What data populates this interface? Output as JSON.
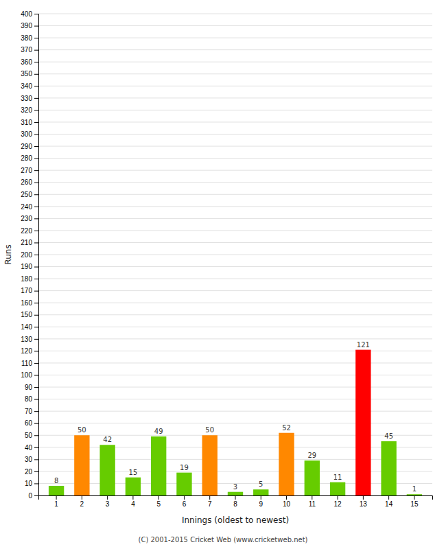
{
  "chart_data": {
    "type": "bar",
    "categories": [
      "1",
      "2",
      "3",
      "4",
      "5",
      "6",
      "7",
      "8",
      "9",
      "10",
      "11",
      "12",
      "13",
      "14",
      "15"
    ],
    "values": [
      8,
      50,
      42,
      15,
      49,
      19,
      50,
      3,
      5,
      52,
      29,
      11,
      121,
      45,
      1
    ],
    "colors": [
      "#66cc00",
      "#ff8800",
      "#66cc00",
      "#66cc00",
      "#66cc00",
      "#66cc00",
      "#ff8800",
      "#66cc00",
      "#66cc00",
      "#ff8800",
      "#66cc00",
      "#66cc00",
      "#ff0000",
      "#66cc00",
      "#66cc00"
    ],
    "ylabel": "Runs",
    "xlabel": "Innings (oldest to newest)",
    "ylim": [
      0,
      400
    ],
    "yticks": [
      0,
      10,
      20,
      30,
      40,
      50,
      60,
      70,
      80,
      90,
      100,
      110,
      120,
      130,
      140,
      150,
      160,
      170,
      180,
      190,
      200,
      210,
      220,
      230,
      240,
      250,
      260,
      270,
      280,
      290,
      300,
      310,
      320,
      330,
      340,
      350,
      360,
      370,
      380,
      390,
      400
    ],
    "grid": true,
    "data_labels": true,
    "annotations": [
      "(C) 2001-2015 Cricket Web (www.cricketweb.net)"
    ]
  }
}
